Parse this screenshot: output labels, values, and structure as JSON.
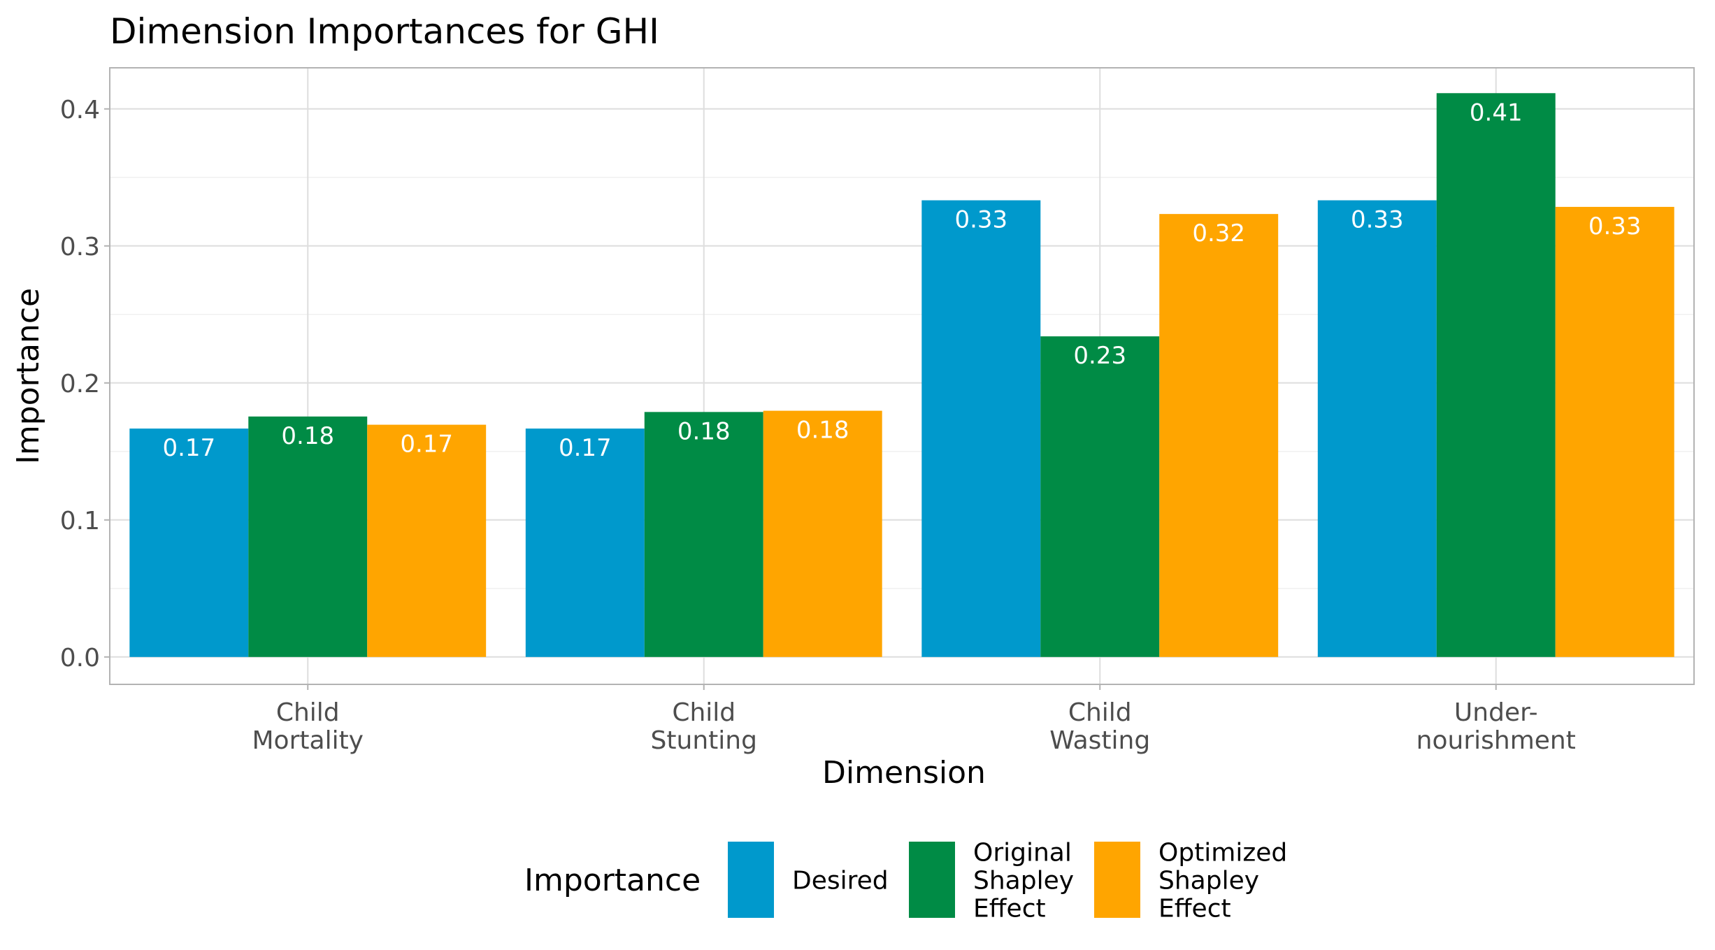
{
  "chart_data": {
    "type": "bar",
    "title": "Dimension Importances for GHI",
    "xlabel": "Dimension",
    "ylabel": "Importance",
    "ylim": [
      -0.02,
      0.43
    ],
    "yticks": [
      0.0,
      0.1,
      0.2,
      0.3,
      0.4
    ],
    "ytick_labels": [
      "0.0",
      "0.1",
      "0.2",
      "0.3",
      "0.4"
    ],
    "grid": true,
    "legend_position": "bottom",
    "categories": [
      [
        "Child",
        "Mortality"
      ],
      [
        "Child",
        "Stunting"
      ],
      [
        "Child",
        "Wasting"
      ],
      [
        "Under-",
        "nourishment"
      ]
    ],
    "legend": {
      "title": "Importance"
    },
    "series": [
      {
        "name": "Desired",
        "label_lines": [
          "Desired"
        ],
        "color": "#0099cc",
        "values": [
          0.1667,
          0.1667,
          0.3333,
          0.3333
        ],
        "labels": [
          "0.17",
          "0.17",
          "0.33",
          "0.33"
        ]
      },
      {
        "name": "Original Shapley Effect",
        "label_lines": [
          "Original",
          "Shapley",
          "Effect"
        ],
        "color": "#008b45",
        "values": [
          0.1755,
          0.1788,
          0.234,
          0.4115
        ],
        "labels": [
          "0.18",
          "0.18",
          "0.23",
          "0.41"
        ]
      },
      {
        "name": "Optimized Shapley Effect",
        "label_lines": [
          "Optimized",
          "Shapley",
          "Effect"
        ],
        "color": "#ffa500",
        "values": [
          0.1695,
          0.1797,
          0.3233,
          0.3285
        ],
        "labels": [
          "0.17",
          "0.18",
          "0.32",
          "0.33"
        ]
      }
    ]
  }
}
